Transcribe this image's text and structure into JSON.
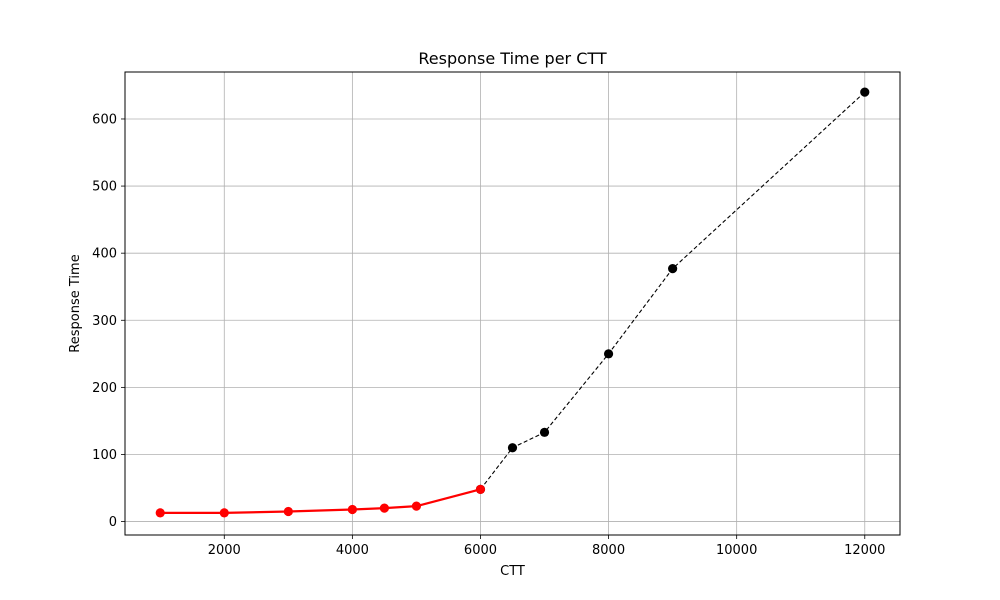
{
  "chart_data": {
    "type": "line",
    "title": "Response Time per CTT",
    "xlabel": "CTT",
    "ylabel": "Response Time",
    "xlim": [
      450,
      12550
    ],
    "ylim": [
      -20,
      670
    ],
    "xticks": [
      2000,
      4000,
      6000,
      8000,
      10000,
      12000
    ],
    "yticks": [
      0,
      100,
      200,
      300,
      400,
      500,
      600
    ],
    "grid": true,
    "series": [
      {
        "style": "solid",
        "color": "#ff0000",
        "x": [
          1000,
          2000,
          3000,
          4000,
          4500,
          5000,
          6000
        ],
        "y": [
          13,
          13,
          15,
          18,
          20,
          23,
          48
        ]
      },
      {
        "style": "dashed",
        "color": "#000000",
        "x": [
          6000,
          6500,
          7000,
          8000,
          9000,
          12000
        ],
        "y": [
          48,
          110,
          133,
          250,
          377,
          640
        ]
      }
    ]
  }
}
